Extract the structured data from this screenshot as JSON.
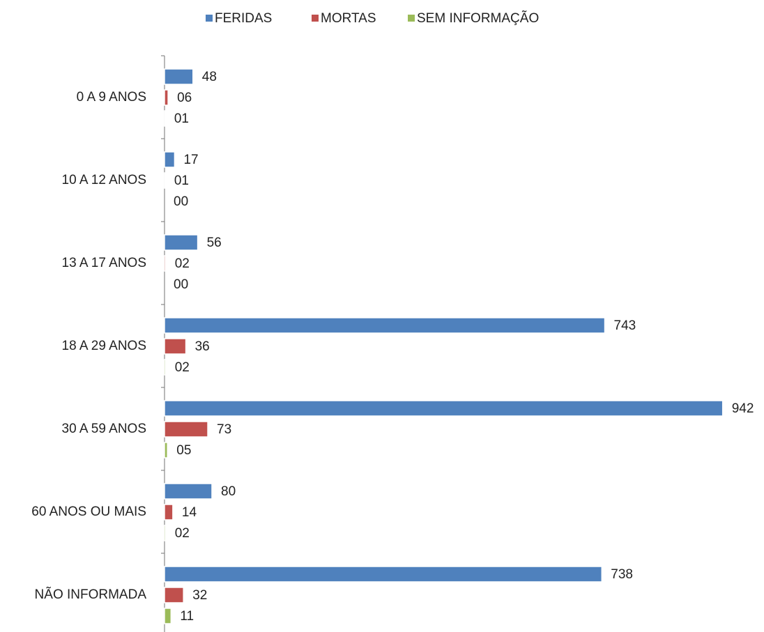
{
  "chart_data": {
    "type": "bar",
    "orientation": "horizontal",
    "categories": [
      "0 A 9 ANOS",
      "10 A 12 ANOS",
      "13 A 17 ANOS",
      "18 A 29 ANOS",
      "30 A 59 ANOS",
      "60 ANOS OU MAIS",
      "NÃO INFORMADA"
    ],
    "series": [
      {
        "name": "FERIDAS",
        "color": "#4f81bd",
        "values": [
          48,
          17,
          56,
          743,
          942,
          80,
          738
        ],
        "value_labels": [
          "48",
          "17",
          "56",
          "743",
          "942",
          "80",
          "738"
        ]
      },
      {
        "name": "MORTAS",
        "color": "#c0504d",
        "values": [
          6,
          1,
          2,
          36,
          73,
          14,
          32
        ],
        "value_labels": [
          "06",
          "01",
          "02",
          "36",
          "73",
          "14",
          "32"
        ]
      },
      {
        "name": "SEM INFORMAÇÃO",
        "color": "#9bbb59",
        "values": [
          1,
          0,
          0,
          2,
          5,
          2,
          11
        ],
        "value_labels": [
          "01",
          "00",
          "00",
          "02",
          "05",
          "02",
          "11"
        ]
      }
    ],
    "legend": "top"
  }
}
